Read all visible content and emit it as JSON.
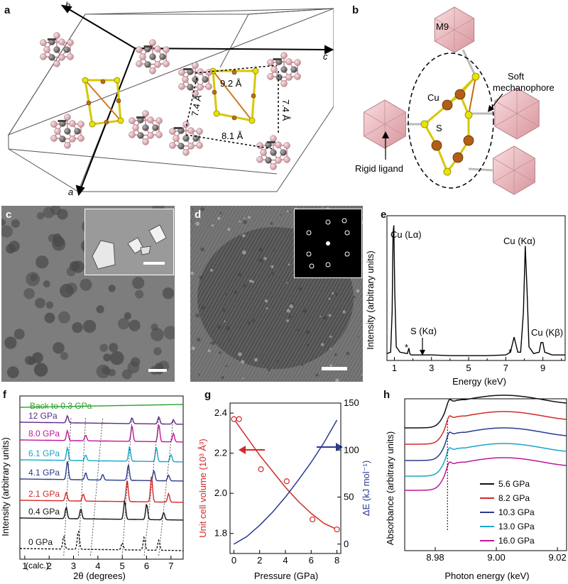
{
  "panels": {
    "a": {
      "label": "a",
      "axes": {
        "a": "a",
        "b": "b",
        "c": "c"
      },
      "distances": [
        "9.2 Å",
        "7.4 Å",
        "7.4 Å",
        "8.1 Å"
      ]
    },
    "b": {
      "label": "b",
      "labels": {
        "m9": "M9",
        "soft": "Soft",
        "mechanophore": "mechanophore",
        "cu": "Cu",
        "s": "S",
        "rigid": "Rigid ligand"
      }
    },
    "c": {
      "label": "c"
    },
    "d": {
      "label": "d"
    },
    "e": {
      "label": "e",
      "ylabel": "Intensity (arbitrary units)",
      "xlabel": "Energy (keV)",
      "xticks": [
        "1",
        "3",
        "5",
        "7",
        "9"
      ],
      "peaks": {
        "cu_la": "Cu (Lα)",
        "s_ka": "S (Kα)",
        "cu_ka": "Cu (Kα)",
        "cu_kb": "Cu (Kβ)",
        "star": "*"
      }
    },
    "f": {
      "label": "f",
      "ylabel": "Intensity (arbitrary units)",
      "xlabel": "2θ (degrees)",
      "xticks": [
        "1",
        "2",
        "3",
        "4",
        "5",
        "6",
        "7"
      ]
    },
    "g": {
      "label": "g",
      "ylabel_left": "Unit cell volume (10³ Å³)",
      "ylabel_right": "ΔE (kJ mol⁻¹)",
      "xlabel": "Pressure (GPa)",
      "xticks": [
        "0",
        "2",
        "4",
        "6",
        "8"
      ],
      "yticks_left": [
        "1.8",
        "2.0",
        "2.2",
        "2.4"
      ],
      "yticks_right": [
        "0",
        "50",
        "100",
        "150"
      ]
    },
    "h": {
      "label": "h",
      "ylabel": "Absorbance (arbitrary units)",
      "xlabel": "Photon energy (keV)",
      "xticks": [
        "8.98",
        "9.00",
        "9.02"
      ]
    }
  },
  "chart_data": [
    {
      "panel": "e",
      "type": "line",
      "xlabel": "Energy (keV)",
      "ylabel": "Intensity (arbitrary units)",
      "xlim": [
        0.6,
        10.2
      ],
      "ylim": [
        0,
        1.05
      ],
      "x": [
        0.6,
        0.8,
        0.88,
        0.93,
        0.97,
        1.02,
        1.1,
        1.3,
        1.7,
        1.78,
        1.83,
        1.9,
        2.3,
        2.6,
        3.0,
        4.0,
        5.0,
        6.0,
        7.0,
        7.25,
        7.45,
        7.65,
        7.8,
        7.95,
        8.05,
        8.15,
        8.25,
        8.5,
        8.8,
        8.9,
        9.0,
        9.1,
        9.5,
        10.2
      ],
      "series": [
        {
          "values": [
            0.05,
            0.06,
            0.35,
            0.92,
            0.98,
            0.5,
            0.1,
            0.06,
            0.05,
            0.09,
            0.05,
            0.04,
            0.04,
            0.04,
            0.04,
            0.035,
            0.035,
            0.035,
            0.04,
            0.06,
            0.17,
            0.06,
            0.06,
            0.35,
            0.83,
            0.5,
            0.1,
            0.05,
            0.06,
            0.13,
            0.13,
            0.06,
            0.04,
            0.04
          ]
        }
      ]
    },
    {
      "panel": "f",
      "type": "line",
      "xlabel": "2θ (degrees)",
      "ylabel": "Intensity (arbitrary units)",
      "xlim": [
        0.8,
        7.5
      ],
      "series": [
        {
          "name": "Back to 0.3 GPa",
          "color": "#2ca02c"
        },
        {
          "name": "12 GPa",
          "color": "#5b2a86"
        },
        {
          "name": "8.0 GPa",
          "color": "#c0179b"
        },
        {
          "name": "6.1 GPa",
          "color": "#18a6c9"
        },
        {
          "name": "4.1 GPa",
          "color": "#2b3a8f"
        },
        {
          "name": "2.1 GPa",
          "color": "#d12a2a"
        },
        {
          "name": "0.4 GPa",
          "color": "#111111"
        },
        {
          "name": "0 GPa",
          "color": "#111111"
        }
      ],
      "annotations": [
        "(calc.)"
      ]
    },
    {
      "panel": "g",
      "type": "scatter",
      "xlabel": "Pressure (GPa)",
      "xlim": [
        -0.3,
        8.3
      ],
      "series": [
        {
          "name": "Unit cell volume (10³ Å³)",
          "axis": "left",
          "ylim": [
            1.7,
            2.45
          ],
          "color": "#d12a2a",
          "points": [
            [
              0,
              2.37
            ],
            [
              0.4,
              2.37
            ],
            [
              2.1,
              2.12
            ],
            [
              4.1,
              2.06
            ],
            [
              6.1,
              1.87
            ],
            [
              8.0,
              1.82
            ]
          ],
          "fit_x": [
            0,
            1,
            2,
            3,
            4,
            5,
            6,
            7,
            8
          ],
          "fit_y": [
            2.37,
            2.28,
            2.19,
            2.11,
            2.03,
            1.96,
            1.9,
            1.85,
            1.82
          ]
        },
        {
          "name": "ΔE (kJ mol⁻¹)",
          "axis": "right",
          "ylim": [
            -10,
            150
          ],
          "color": "#2b3a8f",
          "fit_x": [
            0,
            1,
            2,
            3,
            4,
            5,
            6,
            7,
            8
          ],
          "fit_y": [
            0,
            8,
            20,
            34,
            50,
            68,
            87,
            108,
            132
          ]
        }
      ]
    },
    {
      "panel": "h",
      "type": "line",
      "xlabel": "Photon energy (keV)",
      "ylabel": "Absorbance (arbitrary units)",
      "xlim": [
        8.97,
        9.023
      ],
      "series": [
        {
          "name": "16.0 GPa",
          "color": "#c0179b"
        },
        {
          "name": "13.0 GPa",
          "color": "#18a6c9"
        },
        {
          "name": "10.3 GPa",
          "color": "#2b3a8f"
        },
        {
          "name": "8.2 GPa",
          "color": "#d12a2a"
        },
        {
          "name": "5.6 GPa",
          "color": "#111111"
        }
      ]
    }
  ]
}
